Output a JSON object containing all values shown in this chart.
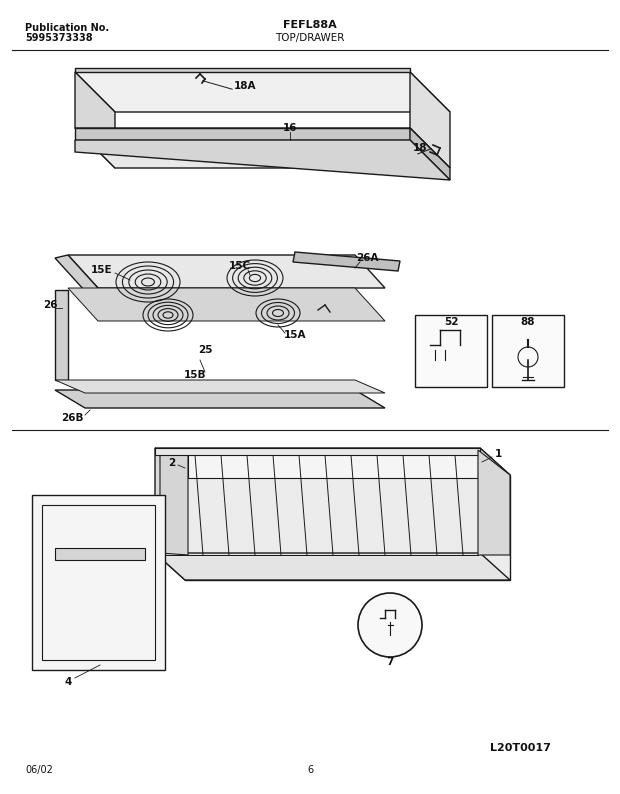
{
  "title_center": "FEFL88A",
  "title_sub": "TOP/DRAWER",
  "pub_no_label": "Publication No.",
  "pub_no": "5995373338",
  "date": "06/02",
  "page": "6",
  "diagram_id": "L20T0017",
  "bg_color": "#ffffff",
  "line_color": "#1a1a1a",
  "label_color": "#111111",
  "figsize": [
    6.2,
    7.94
  ],
  "dpi": 100
}
